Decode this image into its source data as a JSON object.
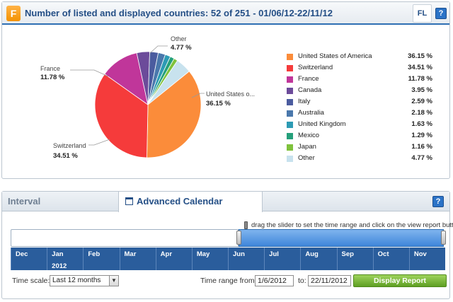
{
  "header": {
    "logo_letter": "F",
    "title": "Number of listed and displayed countries: 52 of 251 - 01/06/12-22/11/12",
    "badge": "FL",
    "help": "?"
  },
  "pie_labels": {
    "other": {
      "name": "Other",
      "value": "4.77 %"
    },
    "france": {
      "name": "France",
      "value": "11.78 %"
    },
    "usa": {
      "name": "United States o...",
      "value": "36.15 %"
    },
    "switzerland": {
      "name": "Switzerland",
      "value": "34.51 %"
    }
  },
  "chart_data": {
    "type": "pie",
    "title": "Number of listed and displayed countries: 52 of 251 - 01/06/12-22/11/12",
    "slices": [
      {
        "label": "United States of America",
        "display": "36.15 %",
        "value": 36.15,
        "color": "#fb8c3a"
      },
      {
        "label": "Switzerland",
        "display": "34.51 %",
        "value": 34.51,
        "color": "#f53b3b"
      },
      {
        "label": "France",
        "display": "11.78 %",
        "value": 11.78,
        "color": "#c0369a"
      },
      {
        "label": "Canada",
        "display": "3.95 %",
        "value": 3.95,
        "color": "#6c4b9a"
      },
      {
        "label": "Italy",
        "display": "2.59 %",
        "value": 2.59,
        "color": "#4b5c9f"
      },
      {
        "label": "Australia",
        "display": "2.18 %",
        "value": 2.18,
        "color": "#4a78ac"
      },
      {
        "label": "United Kingdom",
        "display": "1.63 %",
        "value": 1.63,
        "color": "#2d9bb4"
      },
      {
        "label": "Mexico",
        "display": "1.29 %",
        "value": 1.29,
        "color": "#25a07b"
      },
      {
        "label": "Japan",
        "display": "1.16 %",
        "value": 1.16,
        "color": "#7fc23c"
      },
      {
        "label": "Other",
        "display": "4.77 %",
        "value": 4.77,
        "color": "#c8e2ee"
      }
    ],
    "legend_position": "right"
  },
  "calendar": {
    "tabs": [
      {
        "label": "Interval"
      },
      {
        "label": "Advanced Calendar"
      }
    ],
    "help": "?",
    "slider_hint": "drag the slider to set the time range and click on the view report button",
    "months": [
      "Dec",
      "Jan",
      "Feb",
      "Mar",
      "Apr",
      "May",
      "Jun",
      "Jul",
      "Aug",
      "Sep",
      "Oct",
      "Nov"
    ],
    "year": "2012",
    "time_scale_label": "Time scale:",
    "time_scale_value": "Last 12 months",
    "time_range_from_label": "Time range from:",
    "from_value": "1/6/2012",
    "to_label": "to:",
    "to_value": "22/11/2012",
    "display_button": "Display Report"
  }
}
